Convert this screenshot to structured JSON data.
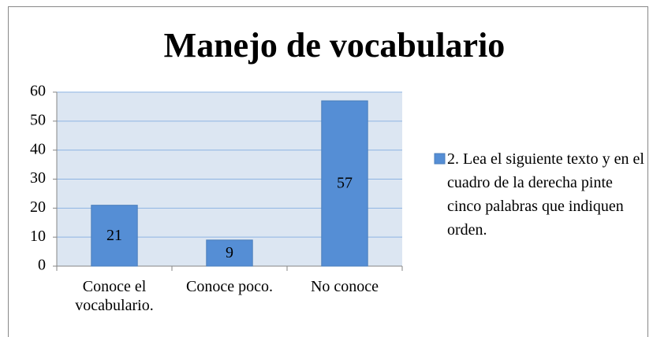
{
  "chart_data": {
    "type": "bar",
    "title": "Manejo de vocabulario",
    "categories": [
      "Conoce el vocabulario.",
      "Conoce poco.",
      "No conoce"
    ],
    "series": [
      {
        "name": "2. Lea el siguiente texto y en el cuadro de la derecha pinte cinco palabras que indiquen orden.",
        "color": "#558ed5",
        "values": [
          21,
          9,
          57
        ]
      }
    ],
    "ylim": [
      0,
      60
    ],
    "yticks": [
      0,
      10,
      20,
      30,
      40,
      50,
      60
    ],
    "grid": true,
    "legend": "right"
  }
}
